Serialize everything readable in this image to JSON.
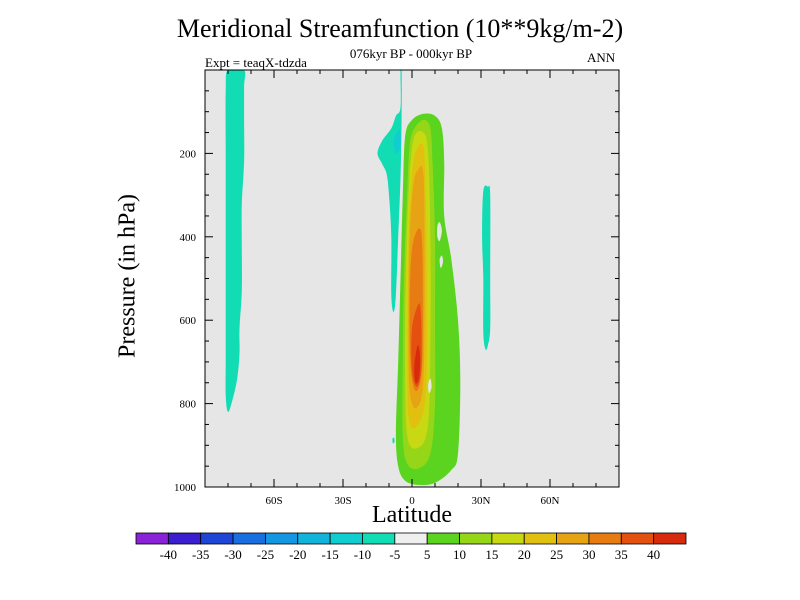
{
  "chart_data": {
    "type": "heatmap",
    "title": "Meridional Streamfunction (10**9kg/m-2)",
    "subtitle_center": "076kyr BP - 000kyr BP",
    "subtitle_left": "Expt = teaqX-tdzda",
    "subtitle_right": "ANN",
    "xlabel": "Latitude",
    "ylabel": "Pressure (in hPa)",
    "xlim": [
      -90,
      90
    ],
    "ylim": [
      1000,
      0
    ],
    "x_ticks": [
      {
        "value": -60,
        "label": "60S"
      },
      {
        "value": -30,
        "label": "30S"
      },
      {
        "value": 0,
        "label": "0"
      },
      {
        "value": 30,
        "label": "30N"
      },
      {
        "value": 60,
        "label": "60N"
      }
    ],
    "y_ticks": [
      {
        "value": 200,
        "label": "200"
      },
      {
        "value": 400,
        "label": "400"
      },
      {
        "value": 600,
        "label": "600"
      },
      {
        "value": 800,
        "label": "800"
      },
      {
        "value": 1000,
        "label": "1000"
      }
    ],
    "plot_background": "#e6e6e6",
    "colorbar": {
      "boundaries": [
        -45,
        -40,
        -35,
        -30,
        -25,
        -20,
        -15,
        -10,
        -5,
        5,
        10,
        15,
        20,
        25,
        30,
        35,
        40,
        45
      ],
      "labels": [
        "-40",
        "-35",
        "-30",
        "-25",
        "-20",
        "-15",
        "-10",
        "-5",
        "5",
        "10",
        "15",
        "20",
        "25",
        "30",
        "35",
        "40"
      ],
      "colors": [
        "#8a22d8",
        "#3a1ed0",
        "#1e46d6",
        "#1a6fe0",
        "#1496e0",
        "#12b4dc",
        "#10cdd0",
        "#11dcb4",
        "#efefef",
        "#5ad41e",
        "#96d618",
        "#c8d812",
        "#e2c010",
        "#e6a414",
        "#e67c12",
        "#e45010",
        "#d82a0c"
      ]
    },
    "contours": [
      {
        "name": "sh-cell-negative-band",
        "level": -7.5,
        "color": "#11dcb4",
        "outline": [
          [
            -80,
            0
          ],
          [
            -73,
            0
          ],
          [
            -73,
            40
          ],
          [
            -73,
            120
          ],
          [
            -73,
            220
          ],
          [
            -74,
            320
          ],
          [
            -74,
            420
          ],
          [
            -74,
            530
          ],
          [
            -75,
            620
          ],
          [
            -75,
            680
          ],
          [
            -76,
            740
          ],
          [
            -78,
            790
          ],
          [
            -80,
            820
          ],
          [
            -81,
            780
          ],
          [
            -81,
            700
          ],
          [
            -81,
            580
          ],
          [
            -81,
            400
          ],
          [
            -81,
            200
          ],
          [
            -81,
            50
          ]
        ]
      },
      {
        "name": "equatorial-negative-sliver",
        "level": -7.5,
        "color": "#11dcb4",
        "outline": [
          [
            -15,
            200
          ],
          [
            -13,
            170
          ],
          [
            -9,
            140
          ],
          [
            -7,
            110
          ],
          [
            -5,
            90
          ],
          [
            -5,
            0
          ],
          [
            -4.5,
            0
          ],
          [
            -4.5,
            110
          ],
          [
            -5,
            260
          ],
          [
            -6,
            400
          ],
          [
            -7,
            540
          ],
          [
            -8,
            580
          ],
          [
            -9,
            540
          ],
          [
            -9,
            400
          ],
          [
            -10,
            300
          ],
          [
            -11,
            250
          ],
          [
            -13,
            225
          ]
        ]
      },
      {
        "name": "equatorial-negative-deep",
        "level": -12.5,
        "color": "#10cdd0",
        "outline": [
          [
            -8,
            170
          ],
          [
            -6,
            145
          ],
          [
            -5,
            150
          ],
          [
            -5,
            185
          ],
          [
            -7,
            200
          ]
        ]
      },
      {
        "name": "nh-negative-band",
        "level": -7.5,
        "color": "#11dcb4",
        "outline": [
          [
            31,
            290
          ],
          [
            33,
            280
          ],
          [
            34,
            300
          ],
          [
            34,
            500
          ],
          [
            34,
            620
          ],
          [
            33,
            660
          ],
          [
            32,
            670
          ],
          [
            31,
            630
          ],
          [
            31,
            500
          ],
          [
            30.5,
            400
          ]
        ]
      },
      {
        "name": "hadley-cell-5",
        "level": 7.5,
        "color": "#5ad41e",
        "outline": [
          [
            0,
            120
          ],
          [
            5,
            105
          ],
          [
            10,
            110
          ],
          [
            13,
            140
          ],
          [
            14,
            220
          ],
          [
            14,
            350
          ],
          [
            17,
            450
          ],
          [
            20,
            600
          ],
          [
            21,
            750
          ],
          [
            20,
            920
          ],
          [
            17,
            960
          ],
          [
            10,
            990
          ],
          [
            3,
            995
          ],
          [
            -3,
            985
          ],
          [
            -6,
            950
          ],
          [
            -7,
            870
          ],
          [
            -6,
            700
          ],
          [
            -5,
            500
          ],
          [
            -4,
            300
          ],
          [
            -3,
            160
          ]
        ]
      },
      {
        "name": "hadley-cell-10",
        "level": 12.5,
        "color": "#96d618",
        "outline": [
          [
            1,
            140
          ],
          [
            5,
            120
          ],
          [
            8,
            140
          ],
          [
            9,
            230
          ],
          [
            10,
            400
          ],
          [
            10,
            600
          ],
          [
            10,
            800
          ],
          [
            8,
            920
          ],
          [
            3,
            955
          ],
          [
            -2,
            945
          ],
          [
            -4,
            880
          ],
          [
            -4,
            700
          ],
          [
            -3.5,
            500
          ],
          [
            -2,
            280
          ],
          [
            -1,
            180
          ]
        ]
      },
      {
        "name": "hadley-cell-15",
        "level": 17.5,
        "color": "#c8d812",
        "outline": [
          [
            1,
            160
          ],
          [
            5,
            150
          ],
          [
            7,
            200
          ],
          [
            8,
            400
          ],
          [
            8,
            650
          ],
          [
            7,
            850
          ],
          [
            3,
            905
          ],
          [
            -2,
            880
          ],
          [
            -3,
            700
          ],
          [
            -2.5,
            450
          ],
          [
            -1,
            250
          ]
        ]
      },
      {
        "name": "hadley-cell-20",
        "level": 22.5,
        "color": "#e2c010",
        "outline": [
          [
            2,
            190
          ],
          [
            5,
            185
          ],
          [
            6,
            300
          ],
          [
            6.5,
            550
          ],
          [
            6,
            780
          ],
          [
            2,
            855
          ],
          [
            -1.5,
            830
          ],
          [
            -2,
            650
          ],
          [
            -1.5,
            400
          ],
          [
            0,
            250
          ]
        ]
      },
      {
        "name": "hadley-cell-25",
        "level": 27.5,
        "color": "#e6a414",
        "outline": [
          [
            2.5,
            240
          ],
          [
            5,
            250
          ],
          [
            5.5,
            450
          ],
          [
            5,
            740
          ],
          [
            2,
            810
          ],
          [
            -1,
            770
          ],
          [
            -1.5,
            600
          ],
          [
            -1,
            400
          ],
          [
            0.5,
            280
          ]
        ]
      },
      {
        "name": "hadley-cell-30",
        "level": 32.5,
        "color": "#e67c12",
        "outline": [
          [
            3,
            380
          ],
          [
            4.5,
            430
          ],
          [
            4.5,
            700
          ],
          [
            2,
            770
          ],
          [
            -0.5,
            720
          ],
          [
            -1,
            560
          ],
          [
            0,
            430
          ]
        ]
      },
      {
        "name": "hadley-cell-35",
        "level": 37.5,
        "color": "#e45010",
        "outline": [
          [
            3,
            560
          ],
          [
            4,
            600
          ],
          [
            4,
            720
          ],
          [
            2,
            760
          ],
          [
            0,
            720
          ],
          [
            0,
            620
          ]
        ]
      },
      {
        "name": "hadley-cell-40",
        "level": 42.5,
        "color": "#d82a0c",
        "outline": [
          [
            2.5,
            660
          ],
          [
            3.5,
            690
          ],
          [
            3,
            740
          ],
          [
            1.5,
            750
          ],
          [
            1,
            710
          ]
        ]
      },
      {
        "name": "hole-upper",
        "level": 0,
        "color": "#e6e6e6",
        "outline": [
          [
            11,
            375
          ],
          [
            12,
            365
          ],
          [
            13,
            385
          ],
          [
            12,
            410
          ],
          [
            11,
            400
          ]
        ]
      },
      {
        "name": "hole-mid",
        "level": 0,
        "color": "#e6e6e6",
        "outline": [
          [
            12,
            455
          ],
          [
            13,
            445
          ],
          [
            13.5,
            460
          ],
          [
            12.5,
            475
          ]
        ]
      },
      {
        "name": "hole-lower",
        "level": 0,
        "color": "#e6e6e6",
        "outline": [
          [
            7,
            755
          ],
          [
            8,
            740
          ],
          [
            8.5,
            760
          ],
          [
            7.5,
            775
          ]
        ]
      },
      {
        "name": "speck-south",
        "level": -7.5,
        "color": "#11dcb4",
        "outline": [
          [
            -8.5,
            885
          ],
          [
            -7.8,
            882
          ],
          [
            -7.6,
            892
          ],
          [
            -8.3,
            895
          ]
        ]
      }
    ]
  }
}
